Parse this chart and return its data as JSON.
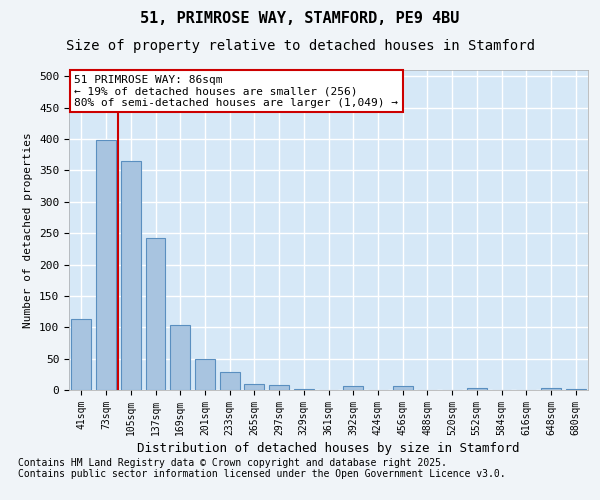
{
  "title_line1": "51, PRIMROSE WAY, STAMFORD, PE9 4BU",
  "title_line2": "Size of property relative to detached houses in Stamford",
  "xlabel": "Distribution of detached houses by size in Stamford",
  "ylabel": "Number of detached properties",
  "categories": [
    "41sqm",
    "73sqm",
    "105sqm",
    "137sqm",
    "169sqm",
    "201sqm",
    "233sqm",
    "265sqm",
    "297sqm",
    "329sqm",
    "361sqm",
    "392sqm",
    "424sqm",
    "456sqm",
    "488sqm",
    "520sqm",
    "552sqm",
    "584sqm",
    "616sqm",
    "648sqm",
    "680sqm"
  ],
  "values": [
    113,
    398,
    365,
    242,
    104,
    49,
    29,
    10,
    8,
    2,
    0,
    6,
    0,
    7,
    0,
    0,
    3,
    0,
    0,
    3,
    2
  ],
  "bar_color": "#a8c4e0",
  "bar_edge_color": "#5a8fc0",
  "vline_x": 1.5,
  "vline_color": "#cc0000",
  "annotation_text": "51 PRIMROSE WAY: 86sqm\n← 19% of detached houses are smaller (256)\n80% of semi-detached houses are larger (1,049) →",
  "annotation_fontsize": 8,
  "annotation_box_color": "#cc0000",
  "ylim": [
    0,
    510
  ],
  "yticks": [
    0,
    50,
    100,
    150,
    200,
    250,
    300,
    350,
    400,
    450,
    500
  ],
  "plot_background": "#d6e8f7",
  "footer_text": "Contains HM Land Registry data © Crown copyright and database right 2025.\nContains public sector information licensed under the Open Government Licence v3.0.",
  "title_fontsize": 11,
  "subtitle_fontsize": 10,
  "grid_color": "#ffffff",
  "figsize": [
    6.0,
    5.0
  ],
  "dpi": 100
}
